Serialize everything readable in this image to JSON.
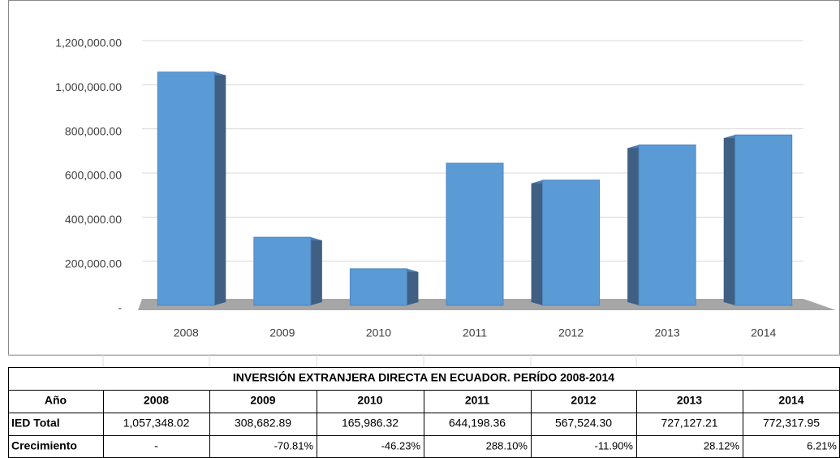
{
  "chart_data": {
    "type": "bar",
    "categories": [
      "2008",
      "2009",
      "2010",
      "2011",
      "2012",
      "2013",
      "2014"
    ],
    "values": [
      1057348.02,
      308682.89,
      165986.32,
      644198.36,
      567524.3,
      727127.21,
      772317.95
    ],
    "color": "#5b9bd5",
    "ylim": [
      0,
      1200000
    ],
    "yticks": [
      {
        "value": 0,
        "label": "-"
      },
      {
        "value": 200000,
        "label": "200,000.00"
      },
      {
        "value": 400000,
        "label": "400,000.00"
      },
      {
        "value": 600000,
        "label": "600,000.00"
      },
      {
        "value": 800000,
        "label": "800,000.00"
      },
      {
        "value": 1000000,
        "label": "1,000,000.00"
      },
      {
        "value": 1200000,
        "label": "1,200,000.00"
      }
    ],
    "grid": true
  },
  "table": {
    "title": "INVERSIÓN EXTRANJERA DIRECTA EN ECUADOR. PERÍDO 2008-2014",
    "header": [
      "Año",
      "2008",
      "2009",
      "2010",
      "2011",
      "2012",
      "2013",
      "2014"
    ],
    "rows": [
      [
        "IED Total",
        "1,057,348.02",
        "308,682.89",
        "165,986.32",
        "644,198.36",
        "567,524.30",
        "727,127.21",
        "772,317.95"
      ],
      [
        "Crecimiento",
        "-",
        "-70.81%",
        "-46.23%",
        "288.10%",
        "-11.90%",
        "28.12%",
        "6.21%"
      ]
    ]
  }
}
